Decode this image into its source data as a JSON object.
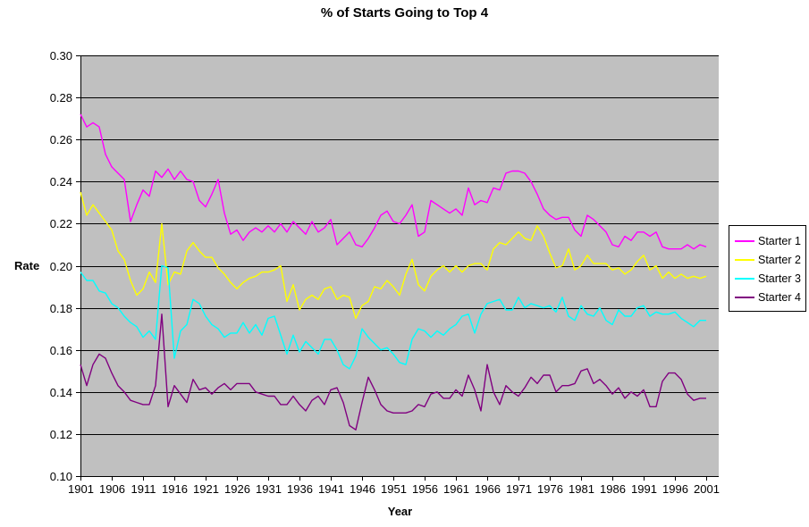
{
  "title": "% of Starts Going to Top 4",
  "y_axis": {
    "label": "Rate",
    "min": 0.1,
    "max": 0.3,
    "step": 0.02,
    "tick_labels": [
      "0.30",
      "0.28",
      "0.26",
      "0.24",
      "0.22",
      "0.20",
      "0.18",
      "0.16",
      "0.14",
      "0.12",
      "0.10"
    ]
  },
  "x_axis": {
    "label": "Year",
    "tick_labels": [
      "1901",
      "1906",
      "1911",
      "1916",
      "1921",
      "1926",
      "1931",
      "1936",
      "1941",
      "1946",
      "1951",
      "1956",
      "1961",
      "1966",
      "1971",
      "1976",
      "1981",
      "1986",
      "1991",
      "1996",
      "2001"
    ]
  },
  "legend": {
    "position": "right",
    "entries": [
      {
        "label": "Starter 1",
        "color": "#FF00FF"
      },
      {
        "label": "Starter 2",
        "color": "#FFFF00"
      },
      {
        "label": "Starter 3",
        "color": "#00FFFF"
      },
      {
        "label": "Starter 4",
        "color": "#800080"
      }
    ]
  },
  "colors": {
    "plot_background": "#C0C0C0",
    "gridline": "#000000",
    "page_background": "#FFFFFF"
  },
  "chart_data": {
    "type": "line",
    "title": "% of Starts Going to Top 4",
    "xlabel": "Year",
    "ylabel": "Rate",
    "ylim": [
      0.1,
      0.3
    ],
    "y_tick_step": 0.02,
    "grid": true,
    "legend_position": "right",
    "x_start": 1901,
    "x_end": 2001,
    "x_tick_interval": 5,
    "series": [
      {
        "name": "Starter 1",
        "color": "#FF00FF",
        "values": [
          0.272,
          0.266,
          0.268,
          0.266,
          0.253,
          0.247,
          0.244,
          0.241,
          0.221,
          0.229,
          0.236,
          0.233,
          0.245,
          0.242,
          0.246,
          0.241,
          0.245,
          0.241,
          0.24,
          0.231,
          0.228,
          0.234,
          0.241,
          0.225,
          0.215,
          0.217,
          0.212,
          0.216,
          0.218,
          0.216,
          0.219,
          0.216,
          0.22,
          0.216,
          0.221,
          0.218,
          0.215,
          0.221,
          0.216,
          0.218,
          0.222,
          0.21,
          0.213,
          0.216,
          0.21,
          0.209,
          0.213,
          0.218,
          0.224,
          0.226,
          0.221,
          0.22,
          0.224,
          0.229,
          0.214,
          0.216,
          0.231,
          0.229,
          0.227,
          0.225,
          0.227,
          0.224,
          0.237,
          0.229,
          0.231,
          0.23,
          0.237,
          0.236,
          0.244,
          0.245,
          0.245,
          0.244,
          0.24,
          0.234,
          0.227,
          0.224,
          0.222,
          0.223,
          0.223,
          0.217,
          0.214,
          0.224,
          0.222,
          0.219,
          0.216,
          0.21,
          0.209,
          0.214,
          0.212,
          0.216,
          0.216,
          0.214,
          0.216,
          0.209,
          0.208,
          0.208,
          0.208,
          0.21,
          0.208,
          0.21,
          0.209
        ]
      },
      {
        "name": "Starter 2",
        "color": "#FFFF00",
        "values": [
          0.235,
          0.224,
          0.229,
          0.225,
          0.221,
          0.217,
          0.207,
          0.203,
          0.193,
          0.186,
          0.189,
          0.197,
          0.192,
          0.22,
          0.191,
          0.197,
          0.196,
          0.207,
          0.211,
          0.207,
          0.204,
          0.204,
          0.199,
          0.196,
          0.192,
          0.189,
          0.192,
          0.194,
          0.195,
          0.197,
          0.197,
          0.198,
          0.2,
          0.183,
          0.191,
          0.179,
          0.184,
          0.186,
          0.184,
          0.189,
          0.19,
          0.184,
          0.186,
          0.185,
          0.175,
          0.181,
          0.183,
          0.19,
          0.189,
          0.193,
          0.19,
          0.186,
          0.196,
          0.203,
          0.191,
          0.188,
          0.195,
          0.198,
          0.2,
          0.197,
          0.2,
          0.197,
          0.2,
          0.201,
          0.201,
          0.198,
          0.208,
          0.211,
          0.21,
          0.213,
          0.216,
          0.213,
          0.212,
          0.219,
          0.214,
          0.206,
          0.199,
          0.2,
          0.208,
          0.198,
          0.2,
          0.205,
          0.201,
          0.201,
          0.201,
          0.198,
          0.199,
          0.196,
          0.198,
          0.202,
          0.205,
          0.198,
          0.2,
          0.194,
          0.197,
          0.194,
          0.196,
          0.194,
          0.195,
          0.194,
          0.195
        ]
      },
      {
        "name": "Starter 3",
        "color": "#00FFFF",
        "values": [
          0.197,
          0.193,
          0.193,
          0.188,
          0.187,
          0.182,
          0.18,
          0.176,
          0.173,
          0.171,
          0.166,
          0.169,
          0.165,
          0.2,
          0.199,
          0.156,
          0.169,
          0.172,
          0.184,
          0.182,
          0.176,
          0.172,
          0.17,
          0.166,
          0.168,
          0.168,
          0.173,
          0.168,
          0.172,
          0.167,
          0.175,
          0.176,
          0.167,
          0.158,
          0.167,
          0.159,
          0.164,
          0.161,
          0.158,
          0.165,
          0.165,
          0.16,
          0.153,
          0.151,
          0.157,
          0.17,
          0.166,
          0.163,
          0.16,
          0.161,
          0.158,
          0.154,
          0.153,
          0.165,
          0.17,
          0.169,
          0.166,
          0.169,
          0.167,
          0.17,
          0.172,
          0.176,
          0.177,
          0.168,
          0.177,
          0.182,
          0.183,
          0.184,
          0.179,
          0.179,
          0.185,
          0.18,
          0.182,
          0.181,
          0.18,
          0.181,
          0.178,
          0.185,
          0.176,
          0.174,
          0.181,
          0.177,
          0.176,
          0.18,
          0.174,
          0.172,
          0.179,
          0.176,
          0.176,
          0.18,
          0.181,
          0.176,
          0.178,
          0.177,
          0.177,
          0.178,
          0.175,
          0.173,
          0.171,
          0.174,
          0.174
        ]
      },
      {
        "name": "Starter 4",
        "color": "#800080",
        "values": [
          0.153,
          0.143,
          0.153,
          0.158,
          0.156,
          0.149,
          0.143,
          0.14,
          0.136,
          0.135,
          0.134,
          0.134,
          0.143,
          0.177,
          0.133,
          0.143,
          0.139,
          0.135,
          0.146,
          0.141,
          0.142,
          0.139,
          0.142,
          0.144,
          0.141,
          0.144,
          0.144,
          0.144,
          0.14,
          0.139,
          0.138,
          0.138,
          0.134,
          0.134,
          0.138,
          0.134,
          0.131,
          0.136,
          0.138,
          0.134,
          0.141,
          0.142,
          0.135,
          0.124,
          0.122,
          0.135,
          0.147,
          0.141,
          0.134,
          0.131,
          0.13,
          0.13,
          0.13,
          0.131,
          0.134,
          0.133,
          0.139,
          0.14,
          0.137,
          0.137,
          0.141,
          0.138,
          0.148,
          0.141,
          0.131,
          0.153,
          0.14,
          0.134,
          0.143,
          0.14,
          0.138,
          0.142,
          0.147,
          0.144,
          0.148,
          0.148,
          0.14,
          0.143,
          0.143,
          0.144,
          0.15,
          0.151,
          0.144,
          0.146,
          0.143,
          0.139,
          0.142,
          0.137,
          0.14,
          0.138,
          0.141,
          0.133,
          0.133,
          0.145,
          0.149,
          0.149,
          0.146,
          0.139,
          0.136,
          0.137,
          0.137
        ]
      }
    ]
  }
}
